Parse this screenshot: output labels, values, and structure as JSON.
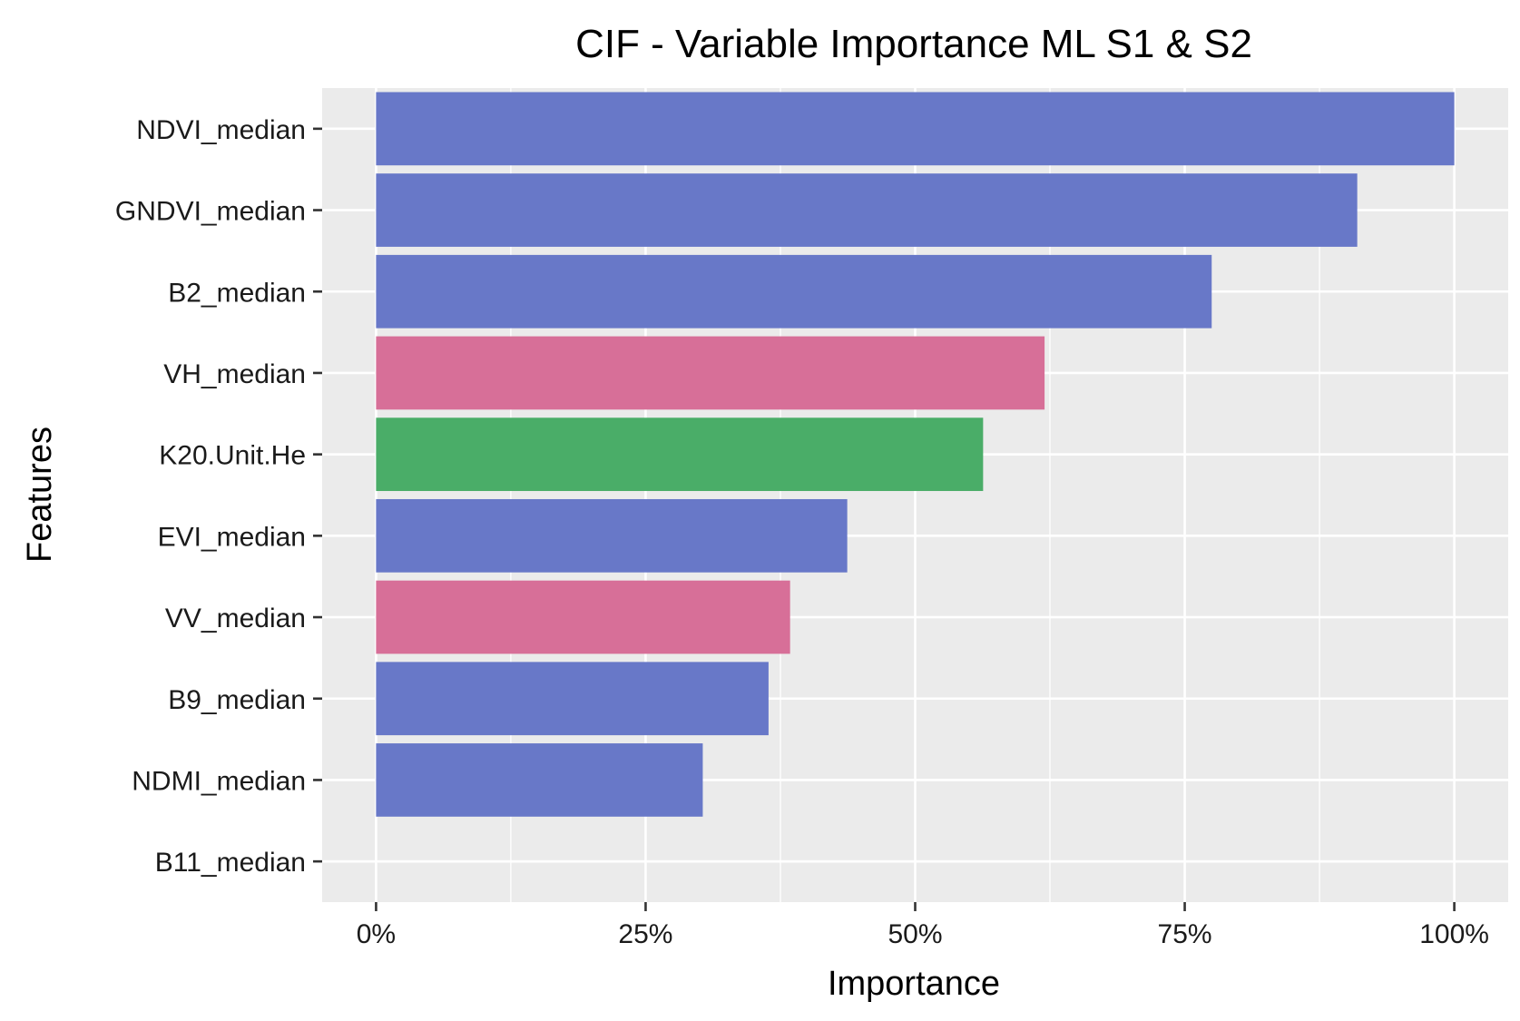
{
  "chart_data": {
    "type": "bar",
    "orientation": "horizontal",
    "title": "CIF - Variable Importance ML S1 & S2",
    "xlabel": "Importance",
    "ylabel": "Features",
    "categories": [
      "NDVI_median",
      "GNDVI_median",
      "B2_median",
      "VH_median",
      "K20.Unit.He",
      "EVI_median",
      "VV_median",
      "B9_median",
      "NDMI_median",
      "B11_median"
    ],
    "values": [
      100,
      91,
      77.5,
      62,
      56.3,
      43.7,
      38.4,
      36.4,
      30.3,
      0
    ],
    "bar_colors": [
      "#6878c8",
      "#6878c8",
      "#6878c8",
      "#d76f98",
      "#4aad68",
      "#6878c8",
      "#d76f98",
      "#6878c8",
      "#6878c8",
      "#6878c8"
    ],
    "xlim": [
      -5,
      105
    ],
    "xticks": [
      0,
      25,
      50,
      75,
      100
    ],
    "xtick_labels": [
      "0%",
      "25%",
      "50%",
      "75%",
      "100%"
    ],
    "grid": true,
    "legend": "none",
    "panel_background": "#ebebeb",
    "grid_color": "#ffffff"
  }
}
